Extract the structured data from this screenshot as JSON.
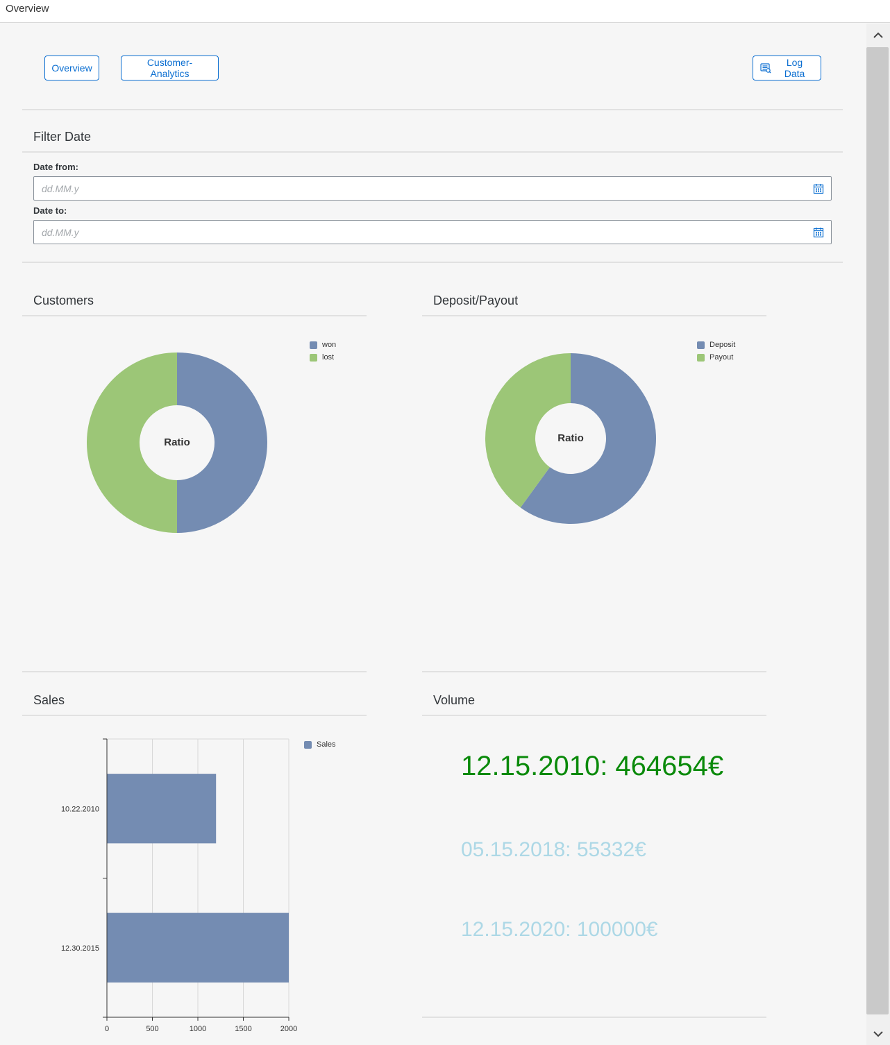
{
  "window": {
    "title": "Overview"
  },
  "nav": {
    "overview_label": "Overview",
    "customer_analytics_label": "Customer-Analytics",
    "log_data_label": "Log Data"
  },
  "filter": {
    "title": "Filter Date",
    "date_from_label": "Date from:",
    "date_to_label": "Date to:",
    "placeholder": "dd.MM.y"
  },
  "customers": {
    "title": "Customers",
    "center_label": "Ratio",
    "legend": [
      "won",
      "lost"
    ]
  },
  "deposit_payout": {
    "title": "Deposit/Payout",
    "center_label": "Ratio",
    "legend": [
      "Deposit",
      "Payout"
    ]
  },
  "sales": {
    "title": "Sales",
    "legend": [
      "Sales"
    ]
  },
  "volume": {
    "title": "Volume",
    "entries": [
      {
        "text": "12.15.2010: 464654€",
        "color": "#0a8a0a"
      },
      {
        "text": "05.15.2018: 55332€",
        "color": "#add8e6"
      },
      {
        "text": "12.15.2020: 100000€",
        "color": "#add8e6"
      }
    ]
  },
  "colors": {
    "blue": "#748cb2",
    "green": "#9cc677",
    "accent": "#0a6ed1"
  },
  "chart_data": [
    {
      "type": "pie",
      "title": "Customers",
      "center_label": "Ratio",
      "labels": [
        "won",
        "lost"
      ],
      "values": [
        50,
        50
      ],
      "colors": [
        "#748cb2",
        "#9cc677"
      ],
      "legend": "top-right"
    },
    {
      "type": "pie",
      "title": "Deposit/Payout",
      "center_label": "Ratio",
      "labels": [
        "Deposit",
        "Payout"
      ],
      "values": [
        60,
        40
      ],
      "colors": [
        "#748cb2",
        "#9cc677"
      ],
      "legend": "top-right"
    },
    {
      "type": "bar",
      "orientation": "horizontal",
      "title": "Sales",
      "categories": [
        "10.22.2010",
        "12.30.2015"
      ],
      "series": [
        {
          "name": "Sales",
          "values": [
            1200,
            2000
          ]
        }
      ],
      "xlim": [
        0,
        2000
      ],
      "xticks": [
        0,
        500,
        1000,
        1500,
        2000
      ],
      "grid": true,
      "legend": "top-right",
      "color": "#748cb2"
    }
  ]
}
